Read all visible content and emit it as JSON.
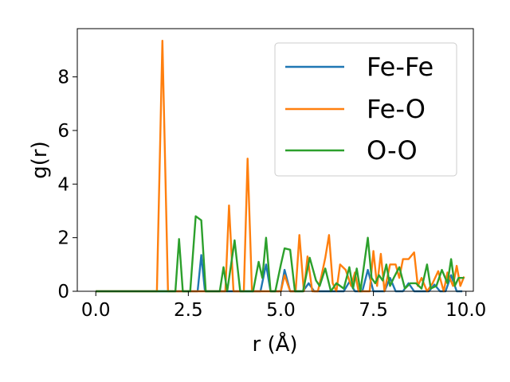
{
  "chart_data": {
    "type": "line",
    "title": "",
    "xlabel": "r (Å)",
    "ylabel": "g(r)",
    "xlim": [
      -0.5,
      10.2
    ],
    "ylim": [
      0,
      9.8
    ],
    "xticks": [
      0.0,
      2.5,
      5.0,
      7.5,
      10.0
    ],
    "xtick_labels": [
      "0.0",
      "2.5",
      "5.0",
      "7.5",
      "10.0"
    ],
    "yticks": [
      0,
      2,
      4,
      6,
      8
    ],
    "ytick_labels": [
      "0",
      "2",
      "4",
      "6",
      "8"
    ],
    "grid": false,
    "legend_position": "top-right",
    "series": [
      {
        "name": "Fe-Fe",
        "color": "#1f77b4",
        "points": [
          [
            0.0,
            0
          ],
          [
            2.6,
            0
          ],
          [
            2.75,
            0
          ],
          [
            2.85,
            1.35
          ],
          [
            2.95,
            0
          ],
          [
            4.45,
            0
          ],
          [
            4.6,
            1.0
          ],
          [
            4.72,
            0
          ],
          [
            5.0,
            0
          ],
          [
            5.1,
            0.8
          ],
          [
            5.25,
            0
          ],
          [
            5.6,
            0
          ],
          [
            5.75,
            0.3
          ],
          [
            5.9,
            0
          ],
          [
            6.7,
            0
          ],
          [
            6.85,
            0.35
          ],
          [
            7.0,
            0
          ],
          [
            7.2,
            0
          ],
          [
            7.35,
            0.8
          ],
          [
            7.5,
            0
          ],
          [
            7.8,
            0
          ],
          [
            7.95,
            0.5
          ],
          [
            8.1,
            0
          ],
          [
            8.3,
            0
          ],
          [
            8.45,
            0.3
          ],
          [
            8.6,
            0
          ],
          [
            9.0,
            0
          ],
          [
            9.15,
            0.25
          ],
          [
            9.3,
            0
          ],
          [
            9.45,
            0
          ],
          [
            9.6,
            0.6
          ],
          [
            9.75,
            0
          ],
          [
            9.9,
            0
          ]
        ]
      },
      {
        "name": "Fe-O",
        "color": "#ff7f0e",
        "points": [
          [
            0.0,
            0
          ],
          [
            1.65,
            0
          ],
          [
            1.8,
            9.35
          ],
          [
            1.95,
            0
          ],
          [
            3.5,
            0
          ],
          [
            3.6,
            3.2
          ],
          [
            3.72,
            0
          ],
          [
            4.0,
            0
          ],
          [
            4.1,
            4.95
          ],
          [
            4.22,
            0
          ],
          [
            5.0,
            0
          ],
          [
            5.1,
            0.6
          ],
          [
            5.25,
            0
          ],
          [
            5.4,
            0
          ],
          [
            5.5,
            2.1
          ],
          [
            5.62,
            0
          ],
          [
            5.72,
            1.3
          ],
          [
            5.85,
            0
          ],
          [
            6.0,
            0
          ],
          [
            6.1,
            0.6
          ],
          [
            6.2,
            1.25
          ],
          [
            6.3,
            2.1
          ],
          [
            6.4,
            0.3
          ],
          [
            6.5,
            0
          ],
          [
            6.6,
            1.0
          ],
          [
            6.75,
            0.8
          ],
          [
            6.9,
            0.2
          ],
          [
            7.0,
            0.7
          ],
          [
            7.1,
            0
          ],
          [
            7.4,
            0
          ],
          [
            7.5,
            1.5
          ],
          [
            7.6,
            0.2
          ],
          [
            7.7,
            1.4
          ],
          [
            7.8,
            0
          ],
          [
            7.95,
            1.0
          ],
          [
            8.1,
            1.0
          ],
          [
            8.2,
            0.5
          ],
          [
            8.3,
            1.2
          ],
          [
            8.45,
            1.2
          ],
          [
            8.6,
            1.45
          ],
          [
            8.7,
            0.2
          ],
          [
            8.8,
            0.5
          ],
          [
            8.95,
            0
          ],
          [
            9.1,
            0.3
          ],
          [
            9.25,
            0.75
          ],
          [
            9.4,
            0
          ],
          [
            9.5,
            0.7
          ],
          [
            9.65,
            0.2
          ],
          [
            9.75,
            0.95
          ],
          [
            9.85,
            0.2
          ],
          [
            9.95,
            0.55
          ]
        ]
      },
      {
        "name": "O-O",
        "color": "#2ca02c",
        "points": [
          [
            0.0,
            0
          ],
          [
            2.15,
            0
          ],
          [
            2.25,
            1.95
          ],
          [
            2.35,
            0
          ],
          [
            2.55,
            0
          ],
          [
            2.7,
            2.8
          ],
          [
            2.85,
            2.65
          ],
          [
            2.97,
            0
          ],
          [
            3.35,
            0
          ],
          [
            3.45,
            0.9
          ],
          [
            3.55,
            0
          ],
          [
            3.75,
            1.9
          ],
          [
            3.9,
            0
          ],
          [
            4.25,
            0
          ],
          [
            4.4,
            1.1
          ],
          [
            4.5,
            0.5
          ],
          [
            4.6,
            2.0
          ],
          [
            4.72,
            0
          ],
          [
            4.85,
            0
          ],
          [
            5.0,
            1.0
          ],
          [
            5.1,
            1.6
          ],
          [
            5.25,
            1.55
          ],
          [
            5.38,
            0
          ],
          [
            5.6,
            0
          ],
          [
            5.78,
            1.25
          ],
          [
            5.95,
            0.4
          ],
          [
            6.05,
            0.2
          ],
          [
            6.2,
            0.85
          ],
          [
            6.35,
            0
          ],
          [
            6.5,
            0.3
          ],
          [
            6.7,
            0.1
          ],
          [
            6.85,
            0.9
          ],
          [
            6.95,
            0.1
          ],
          [
            7.05,
            0.85
          ],
          [
            7.15,
            0
          ],
          [
            7.35,
            2.0
          ],
          [
            7.45,
            0.5
          ],
          [
            7.55,
            0.3
          ],
          [
            7.65,
            0.6
          ],
          [
            7.75,
            0.4
          ],
          [
            7.85,
            1.0
          ],
          [
            7.95,
            0.2
          ],
          [
            8.05,
            0.5
          ],
          [
            8.2,
            0.9
          ],
          [
            8.35,
            0.1
          ],
          [
            8.5,
            0.3
          ],
          [
            8.65,
            0.3
          ],
          [
            8.8,
            0.1
          ],
          [
            8.95,
            1.0
          ],
          [
            9.05,
            0.1
          ],
          [
            9.2,
            0.2
          ],
          [
            9.35,
            0.8
          ],
          [
            9.5,
            0.3
          ],
          [
            9.6,
            1.2
          ],
          [
            9.7,
            0.2
          ],
          [
            9.8,
            0.5
          ],
          [
            9.95,
            0.5
          ]
        ]
      }
    ]
  }
}
